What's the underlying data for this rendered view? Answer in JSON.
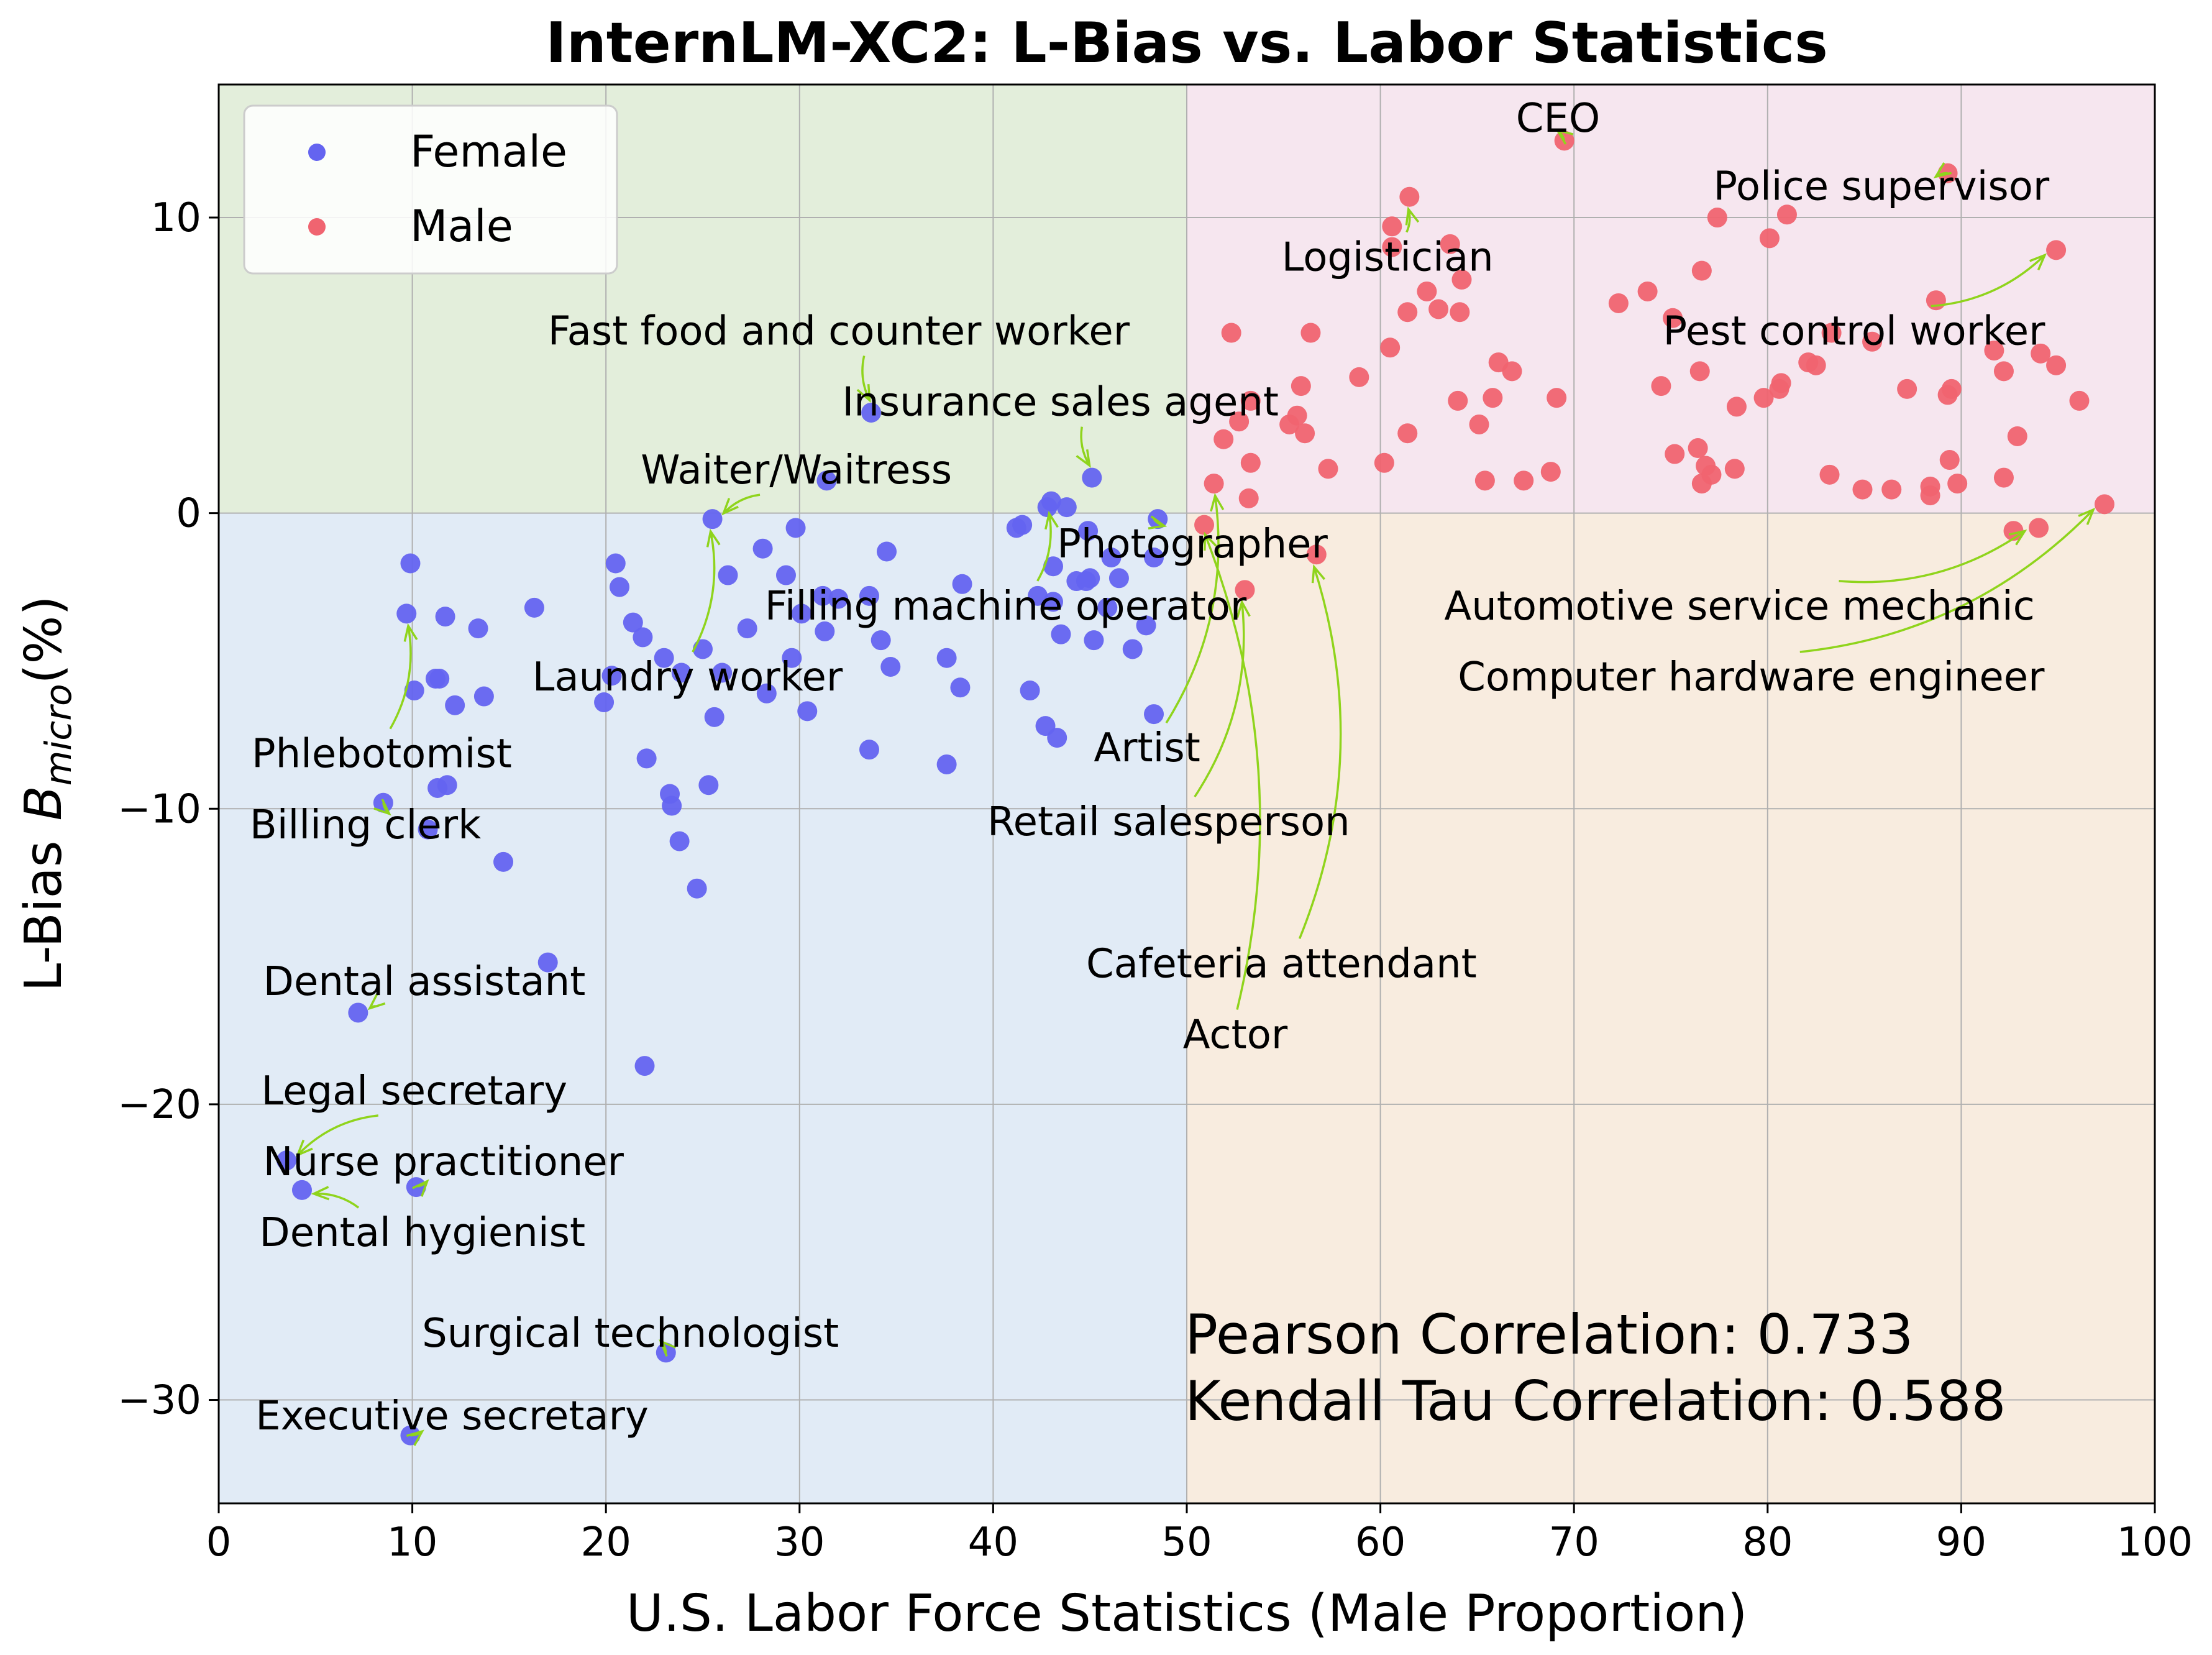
{
  "chart_data": {
    "type": "scatter",
    "title": "InternLM-XC2: L-Bias vs. Labor Statistics",
    "xlabel": "U.S. Labor Force Statistics (Male Proportion)",
    "ylabel_prefix": "L-Bias",
    "ylabel_math": "B",
    "ylabel_sub": "micro",
    "ylabel_suffix": "(%)",
    "xlim": [
      0,
      100
    ],
    "ylim": [
      -33.5,
      14.5
    ],
    "xticks": [
      0,
      10,
      20,
      30,
      40,
      50,
      60,
      70,
      80,
      90,
      100
    ],
    "yticks": [
      -30,
      -20,
      -10,
      0,
      10
    ],
    "ytick_labels": [
      "−30",
      "−20",
      "−10",
      "0",
      "10"
    ],
    "grid": true,
    "legend_position": "top-left",
    "quadrants": [
      {
        "x": [
          0,
          50
        ],
        "y": [
          0,
          14.5
        ],
        "color": "#e3eedb"
      },
      {
        "x": [
          50,
          100
        ],
        "y": [
          0,
          14.5
        ],
        "color": "#f6e6ef"
      },
      {
        "x": [
          0,
          50
        ],
        "y": [
          -33.5,
          0
        ],
        "color": "#e1ebf6"
      },
      {
        "x": [
          50,
          100
        ],
        "y": [
          -33.5,
          0
        ],
        "color": "#f8ecdf"
      }
    ],
    "series": [
      {
        "name": "Female",
        "color": "#6464f0",
        "points": [
          [
            9.9,
            -1.7
          ],
          [
            9.7,
            -3.4
          ],
          [
            10.1,
            -6.0
          ],
          [
            11.7,
            -3.5
          ],
          [
            11.2,
            -5.6
          ],
          [
            11.4,
            -5.6
          ],
          [
            12.2,
            -6.5
          ],
          [
            13.4,
            -3.9
          ],
          [
            13.7,
            -6.2
          ],
          [
            16.3,
            -3.2
          ],
          [
            8.5,
            -9.8
          ],
          [
            10.8,
            -10.7
          ],
          [
            11.3,
            -9.3
          ],
          [
            11.8,
            -9.2
          ],
          [
            14.7,
            -11.8
          ],
          [
            17.0,
            -15.2
          ],
          [
            7.2,
            -16.9
          ],
          [
            3.5,
            -21.9
          ],
          [
            4.3,
            -22.9
          ],
          [
            10.2,
            -22.8
          ],
          [
            23.1,
            -28.4
          ],
          [
            9.9,
            -31.2
          ],
          [
            20.5,
            -1.7
          ],
          [
            20.7,
            -2.5
          ],
          [
            21.4,
            -3.7
          ],
          [
            21.9,
            -4.2
          ],
          [
            20.3,
            -5.5
          ],
          [
            19.9,
            -6.4
          ],
          [
            22.1,
            -8.3
          ],
          [
            23.3,
            -9.5
          ],
          [
            23.4,
            -9.9
          ],
          [
            23.8,
            -11.1
          ],
          [
            24.7,
            -12.7
          ],
          [
            22.0,
            -18.7
          ],
          [
            23.0,
            -4.9
          ],
          [
            23.9,
            -5.4
          ],
          [
            25.0,
            -4.6
          ],
          [
            25.3,
            -9.2
          ],
          [
            25.6,
            -6.9
          ],
          [
            26.0,
            -5.4
          ],
          [
            26.3,
            -2.1
          ],
          [
            27.3,
            -3.9
          ],
          [
            28.1,
            -1.2
          ],
          [
            28.3,
            -6.1
          ],
          [
            29.3,
            -2.1
          ],
          [
            29.6,
            -4.9
          ],
          [
            29.8,
            -0.5
          ],
          [
            30.1,
            -3.4
          ],
          [
            30.4,
            -6.7
          ],
          [
            31.2,
            -2.8
          ],
          [
            31.3,
            -4.0
          ],
          [
            31.4,
            1.1
          ],
          [
            32.0,
            -2.9
          ],
          [
            33.6,
            -2.8
          ],
          [
            33.7,
            3.4
          ],
          [
            34.2,
            -4.3
          ],
          [
            34.5,
            -1.3
          ],
          [
            34.7,
            -5.2
          ],
          [
            33.6,
            -8.0
          ],
          [
            37.6,
            -4.9
          ],
          [
            37.6,
            -8.5
          ],
          [
            38.3,
            -5.9
          ],
          [
            38.4,
            -2.4
          ],
          [
            25.5,
            -0.2
          ],
          [
            41.2,
            -0.5
          ],
          [
            41.5,
            -0.4
          ],
          [
            41.9,
            -6.0
          ],
          [
            42.3,
            -2.8
          ],
          [
            42.7,
            -7.2
          ],
          [
            42.8,
            0.2
          ],
          [
            43.0,
            0.4
          ],
          [
            43.1,
            -3.0
          ],
          [
            43.1,
            -1.8
          ],
          [
            43.3,
            -7.6
          ],
          [
            43.5,
            -4.1
          ],
          [
            43.8,
            0.2
          ],
          [
            44.3,
            -2.3
          ],
          [
            44.8,
            -2.3
          ],
          [
            45.0,
            -2.2
          ],
          [
            44.9,
            -0.6
          ],
          [
            45.1,
            1.2
          ],
          [
            45.2,
            -4.3
          ],
          [
            45.9,
            -3.2
          ],
          [
            46.1,
            -1.5
          ],
          [
            46.5,
            -2.2
          ],
          [
            47.2,
            -4.6
          ],
          [
            47.9,
            -3.8
          ],
          [
            48.3,
            -6.8
          ],
          [
            48.3,
            -1.5
          ],
          [
            48.5,
            -0.2
          ]
        ]
      },
      {
        "name": "Male",
        "color": "#f06470",
        "points": [
          [
            50.9,
            -0.4
          ],
          [
            51.4,
            1.0
          ],
          [
            51.9,
            2.5
          ],
          [
            52.3,
            6.1
          ],
          [
            52.7,
            3.1
          ],
          [
            53.2,
            0.5
          ],
          [
            53.3,
            1.7
          ],
          [
            53.3,
            3.8
          ],
          [
            53.0,
            -2.6
          ],
          [
            55.3,
            3.0
          ],
          [
            55.7,
            3.3
          ],
          [
            55.9,
            4.3
          ],
          [
            56.1,
            2.7
          ],
          [
            56.4,
            6.1
          ],
          [
            56.7,
            -1.4
          ],
          [
            57.3,
            1.5
          ],
          [
            58.9,
            4.6
          ],
          [
            60.2,
            1.7
          ],
          [
            60.5,
            5.6
          ],
          [
            60.6,
            9.0
          ],
          [
            60.6,
            9.7
          ],
          [
            61.4,
            2.7
          ],
          [
            61.4,
            6.8
          ],
          [
            61.5,
            10.7
          ],
          [
            62.4,
            7.5
          ],
          [
            63.0,
            6.9
          ],
          [
            63.6,
            9.1
          ],
          [
            64.0,
            3.8
          ],
          [
            64.1,
            6.8
          ],
          [
            64.2,
            7.9
          ],
          [
            65.1,
            3.0
          ],
          [
            65.4,
            1.1
          ],
          [
            65.8,
            3.9
          ],
          [
            66.1,
            5.1
          ],
          [
            66.8,
            4.8
          ],
          [
            67.4,
            1.1
          ],
          [
            68.8,
            1.4
          ],
          [
            69.1,
            3.9
          ],
          [
            69.5,
            12.6
          ],
          [
            72.3,
            7.1
          ],
          [
            73.8,
            7.5
          ],
          [
            74.5,
            4.3
          ],
          [
            75.1,
            6.6
          ],
          [
            75.2,
            2.0
          ],
          [
            76.4,
            2.2
          ],
          [
            76.5,
            4.8
          ],
          [
            76.6,
            8.2
          ],
          [
            76.6,
            1.0
          ],
          [
            76.8,
            1.6
          ],
          [
            77.1,
            1.3
          ],
          [
            77.4,
            10.0
          ],
          [
            78.3,
            1.5
          ],
          [
            78.4,
            3.6
          ],
          [
            79.8,
            3.9
          ],
          [
            80.1,
            9.3
          ],
          [
            80.6,
            4.2
          ],
          [
            80.7,
            4.4
          ],
          [
            81.0,
            10.1
          ],
          [
            82.1,
            5.1
          ],
          [
            82.5,
            5.0
          ],
          [
            83.2,
            1.3
          ],
          [
            83.3,
            6.1
          ],
          [
            85.4,
            5.8
          ],
          [
            84.9,
            0.8
          ],
          [
            86.4,
            0.8
          ],
          [
            87.2,
            4.2
          ],
          [
            88.4,
            0.6
          ],
          [
            88.4,
            0.9
          ],
          [
            88.7,
            7.2
          ],
          [
            89.3,
            11.5
          ],
          [
            89.3,
            4.0
          ],
          [
            89.5,
            4.2
          ],
          [
            89.4,
            1.8
          ],
          [
            89.8,
            1.0
          ],
          [
            91.7,
            5.5
          ],
          [
            92.2,
            1.2
          ],
          [
            92.2,
            4.8
          ],
          [
            92.7,
            -0.6
          ],
          [
            92.9,
            2.6
          ],
          [
            94.0,
            -0.5
          ],
          [
            94.1,
            5.4
          ],
          [
            94.9,
            8.9
          ],
          [
            94.9,
            5.0
          ],
          [
            96.1,
            3.8
          ],
          [
            97.4,
            0.3
          ]
        ]
      }
    ],
    "annotations": [
      {
        "text": "Fast food and counter worker",
        "point": [
          33.7,
          3.4
        ],
        "label": [
          17.0,
          5.7
        ],
        "anchor": "start"
      },
      {
        "text": "Insurance sales agent",
        "point": [
          45.1,
          1.2
        ],
        "label": [
          32.2,
          3.3
        ],
        "anchor": "start"
      },
      {
        "text": "Waiter/Waitress",
        "point": [
          25.5,
          -0.2
        ],
        "label": [
          21.8,
          1.0
        ],
        "anchor": "start"
      },
      {
        "text": "Filling machine operator",
        "point": [
          43.0,
          0.4
        ],
        "label": [
          28.2,
          -3.6
        ],
        "anchor": "start"
      },
      {
        "text": "Laundry worker",
        "point": [
          25.5,
          -0.2
        ],
        "label": [
          16.2,
          -6.0
        ],
        "anchor": "start"
      },
      {
        "text": "Photographer",
        "point": [
          48.3,
          -0.2
        ],
        "label": [
          43.3,
          -1.5
        ],
        "anchor": "start"
      },
      {
        "text": "Artist",
        "point": [
          51.6,
          1.0
        ],
        "label": [
          45.2,
          -8.4
        ],
        "anchor": "start"
      },
      {
        "text": "Retail salesperson",
        "point": [
          53.0,
          -2.6
        ],
        "label": [
          39.7,
          -10.9
        ],
        "anchor": "start"
      },
      {
        "text": "Cafeteria attendant",
        "point": [
          56.6,
          -1.4
        ],
        "label": [
          44.8,
          -15.7
        ],
        "anchor": "start"
      },
      {
        "text": "Actor",
        "point": [
          50.9,
          -0.3
        ],
        "label": [
          49.8,
          -18.1
        ],
        "anchor": "start"
      },
      {
        "text": "Phlebotomist",
        "point": [
          9.9,
          -3.4
        ],
        "label": [
          1.7,
          -8.6
        ],
        "anchor": "start"
      },
      {
        "text": "Billing clerk",
        "point": [
          8.5,
          -9.8
        ],
        "label": [
          1.6,
          -11.0
        ],
        "anchor": "start"
      },
      {
        "text": "Dental assistant",
        "point": [
          7.2,
          -16.9
        ],
        "label": [
          2.3,
          -16.3
        ],
        "anchor": "start"
      },
      {
        "text": "Legal secretary",
        "point": [
          3.5,
          -21.9
        ],
        "label": [
          2.2,
          -20.0
        ],
        "anchor": "start"
      },
      {
        "text": "Nurse practitioner",
        "point": [
          10.2,
          -22.8
        ],
        "label": [
          2.3,
          -22.4
        ],
        "anchor": "start"
      },
      {
        "text": "Dental hygienist",
        "point": [
          4.3,
          -22.9
        ],
        "label": [
          2.1,
          -24.8
        ],
        "anchor": "start"
      },
      {
        "text": "Surgical technologist",
        "point": [
          23.1,
          -28.4
        ],
        "label": [
          10.5,
          -28.2
        ],
        "anchor": "start"
      },
      {
        "text": "Executive secretary",
        "point": [
          9.9,
          -31.2
        ],
        "label": [
          1.9,
          -31.0
        ],
        "anchor": "start"
      },
      {
        "text": "CEO",
        "point": [
          69.5,
          12.6
        ],
        "label": [
          67.0,
          12.9
        ],
        "anchor": "start"
      },
      {
        "text": "Police supervisor",
        "point": [
          89.3,
          11.5
        ],
        "label": [
          77.2,
          10.6
        ],
        "anchor": "start"
      },
      {
        "text": "Logistician",
        "point": [
          61.5,
          10.7
        ],
        "label": [
          54.9,
          8.2
        ],
        "anchor": "start"
      },
      {
        "text": "Pest control worker",
        "point": [
          94.9,
          8.9
        ],
        "label": [
          74.6,
          5.7
        ],
        "anchor": "start"
      },
      {
        "text": "Automotive service mechanic",
        "point": [
          93.9,
          -0.5
        ],
        "label": [
          63.3,
          -3.6
        ],
        "anchor": "start"
      },
      {
        "text": "Computer hardware engineer",
        "point": [
          97.4,
          0.3
        ],
        "label": [
          64.0,
          -6.0
        ],
        "anchor": "start"
      }
    ],
    "correlations": [
      "Pearson Correlation: 0.733",
      "Kendall Tau Correlation: 0.588"
    ],
    "annotation_arrow_color": "#8fd41c"
  }
}
